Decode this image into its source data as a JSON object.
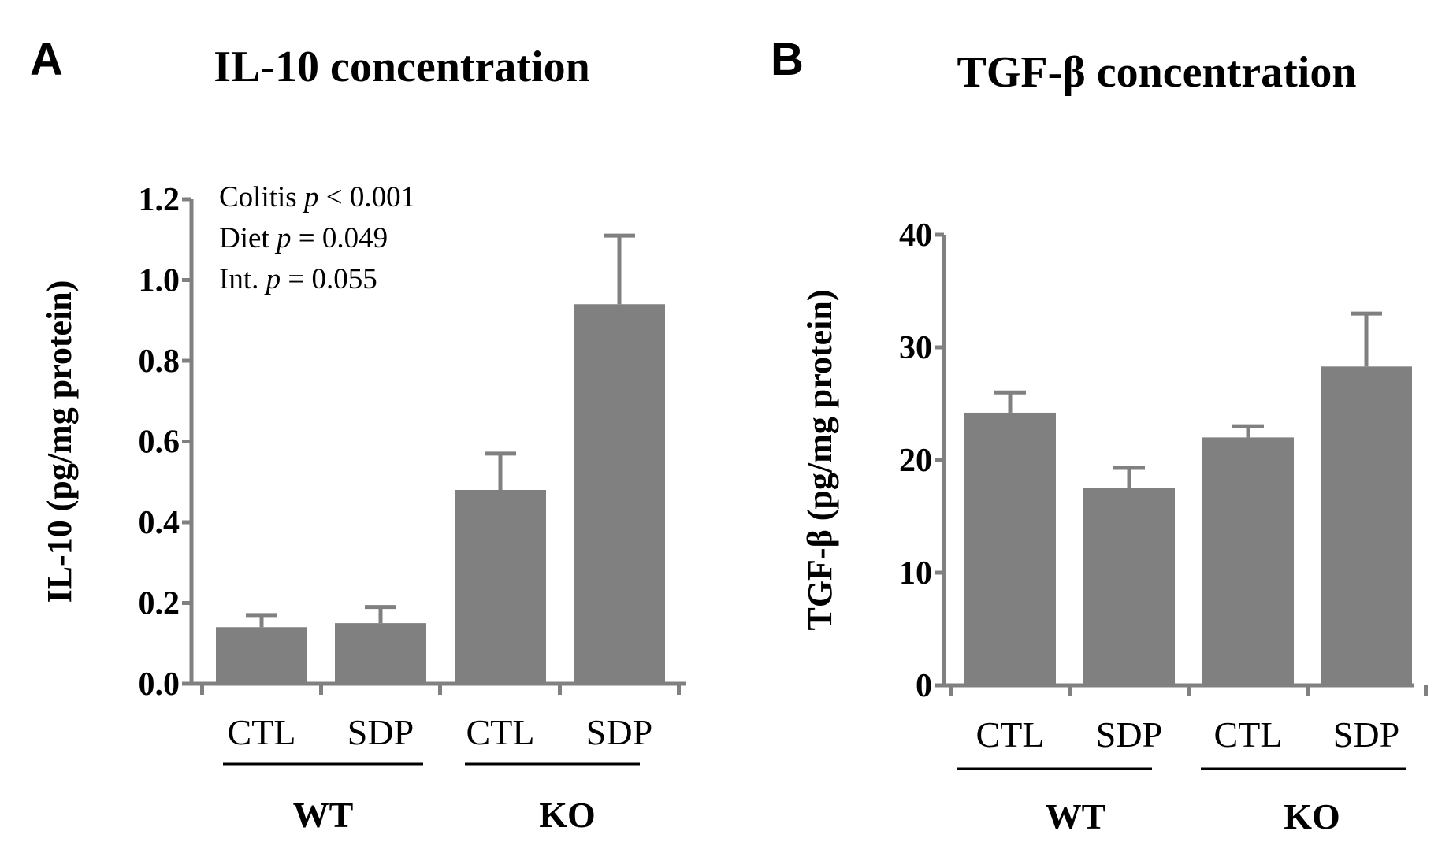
{
  "chart_data": [
    {
      "type": "bar",
      "panel_label": "A",
      "title": "IL-10 concentration",
      "ylabel": "IL-10 (pg/mg protein)",
      "xlabel": "",
      "ylim": [
        0,
        1.2
      ],
      "yticks": [
        0.0,
        0.2,
        0.4,
        0.6,
        0.8,
        1.0,
        1.2
      ],
      "ytick_labels": [
        "0.0",
        "0.2",
        "0.4",
        "0.6",
        "0.8",
        "1.0",
        "1.2"
      ],
      "categories": [
        "CTL",
        "SDP",
        "CTL",
        "SDP"
      ],
      "groups": [
        {
          "name": "WT",
          "categories": [
            0,
            1
          ]
        },
        {
          "name": "KO",
          "categories": [
            2,
            3
          ]
        }
      ],
      "values": [
        0.14,
        0.15,
        0.48,
        0.94
      ],
      "errors": [
        0.03,
        0.04,
        0.09,
        0.17
      ],
      "bar_color": "#808080",
      "annotations": [
        {
          "pre": "Colitis ",
          "italic": "p",
          "post": " < 0.001"
        },
        {
          "pre": "Diet ",
          "italic": "p",
          "post": " = 0.049"
        },
        {
          "pre": "Int. ",
          "italic": "p",
          "post": " = 0.055"
        }
      ]
    },
    {
      "type": "bar",
      "panel_label": "B",
      "title": "TGF-β concentration",
      "ylabel": "TGF-β (pg/mg protein)",
      "xlabel": "",
      "ylim": [
        0,
        40
      ],
      "yticks": [
        0,
        10,
        20,
        30,
        40
      ],
      "ytick_labels": [
        "0",
        "10",
        "20",
        "30",
        "40"
      ],
      "categories": [
        "CTL",
        "SDP",
        "CTL",
        "SDP"
      ],
      "groups": [
        {
          "name": "WT",
          "categories": [
            0,
            1
          ]
        },
        {
          "name": "KO",
          "categories": [
            2,
            3
          ]
        }
      ],
      "values": [
        24.2,
        17.5,
        22.0,
        28.3
      ],
      "errors": [
        1.8,
        1.8,
        1.0,
        4.7
      ],
      "bar_color": "#808080",
      "annotations": []
    }
  ]
}
